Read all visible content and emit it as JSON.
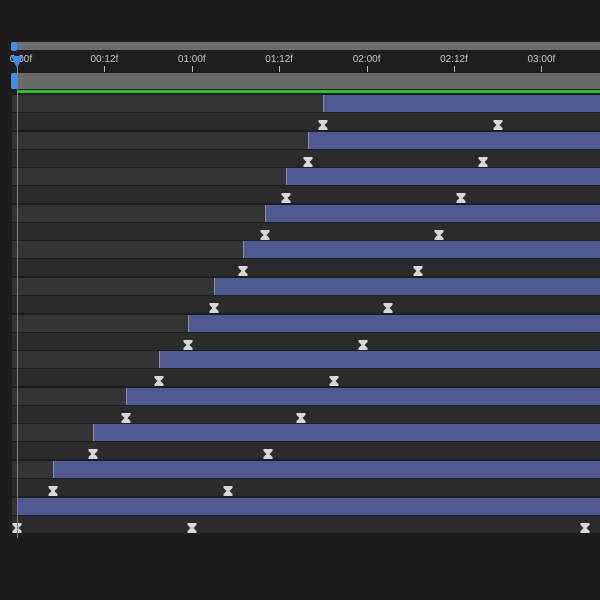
{
  "ruler": {
    "labels": [
      "0:00f",
      "00:12f",
      "01:00f",
      "01:12f",
      "02:00f",
      "02:12f",
      "03:00f"
    ],
    "frames_per_label": 12
  },
  "current_time_frames": 0,
  "colors": {
    "accent": "#3d8ee6",
    "layer_bar": "#4f5a92",
    "work_area": "#2fc12f"
  },
  "layers": [
    {
      "in_frame": 42,
      "keyframes": [
        42,
        66
      ]
    },
    {
      "in_frame": 40,
      "keyframes": [
        40,
        64
      ]
    },
    {
      "in_frame": 37,
      "keyframes": [
        37,
        61
      ]
    },
    {
      "in_frame": 34,
      "keyframes": [
        34,
        58
      ]
    },
    {
      "in_frame": 31,
      "keyframes": [
        31,
        55
      ]
    },
    {
      "in_frame": 27,
      "keyframes": [
        27,
        51
      ]
    },
    {
      "in_frame": 23.5,
      "keyframes": [
        23.5,
        47.5
      ]
    },
    {
      "in_frame": 19.5,
      "keyframes": [
        19.5,
        43.5
      ]
    },
    {
      "in_frame": 15,
      "keyframes": [
        15,
        39
      ]
    },
    {
      "in_frame": 10.5,
      "keyframes": [
        10.5,
        34.5
      ]
    },
    {
      "in_frame": 5,
      "keyframes": [
        5,
        29
      ]
    },
    {
      "in_frame": 0,
      "keyframes": [
        0,
        24,
        78
      ]
    }
  ],
  "keyframe_icon": "hourglass-keyframe-icon"
}
